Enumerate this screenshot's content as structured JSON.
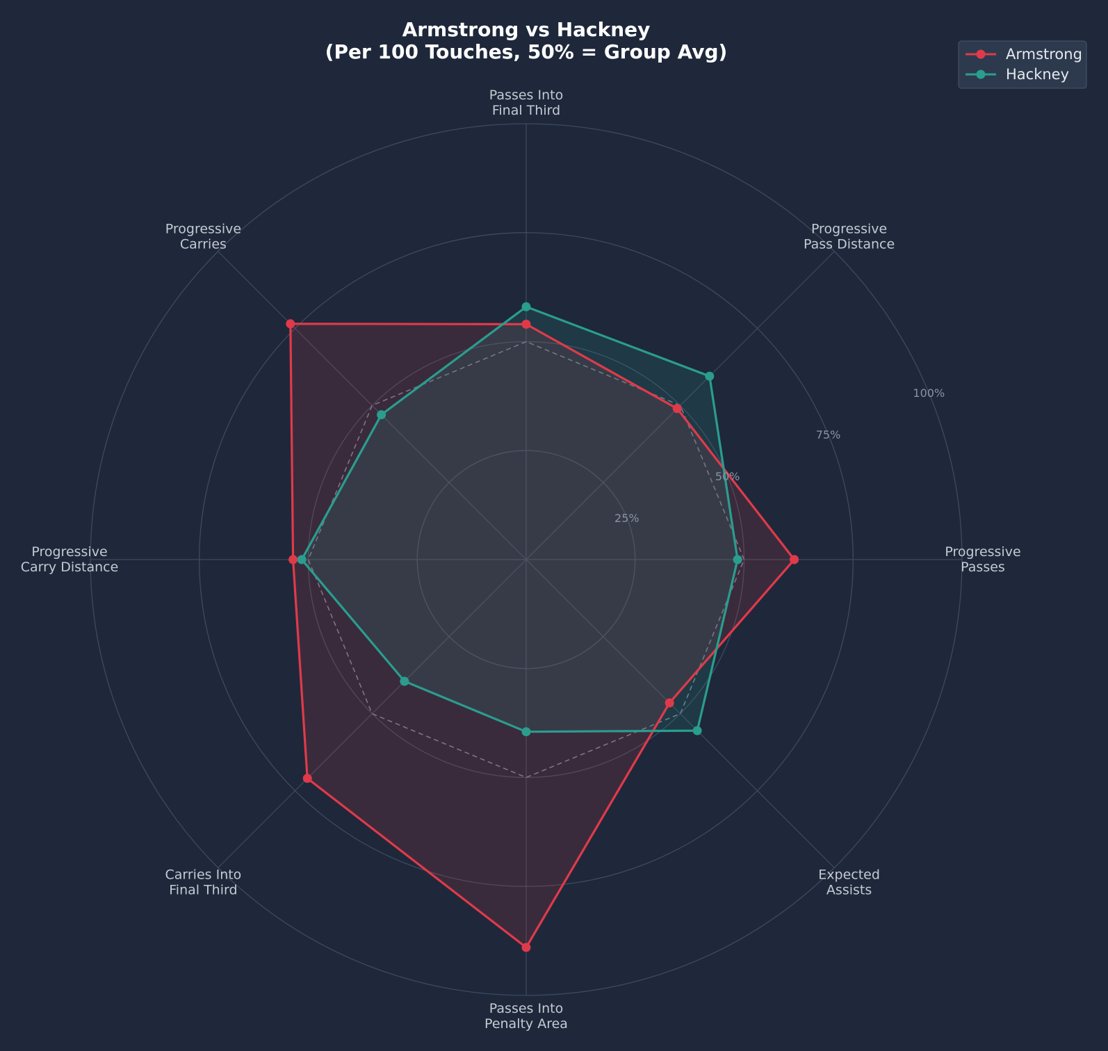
{
  "chart_data": {
    "type": "radar",
    "title_lines": [
      "Armstrong vs Hackney",
      "(Per 100 Touches, 50% = Group Avg)"
    ],
    "axes": [
      [
        "Progressive",
        "Passes"
      ],
      [
        "Progressive",
        "Pass Distance"
      ],
      [
        "Passes Into",
        "Final Third"
      ],
      [
        "Progressive",
        "Carries"
      ],
      [
        "Progressive",
        "Carry Distance"
      ],
      [
        "Carries Into",
        "Final Third"
      ],
      [
        "Passes Into",
        "Penalty Area"
      ],
      [
        "Expected",
        "Assists"
      ]
    ],
    "rlim": [
      0,
      100
    ],
    "ticks": [
      25,
      50,
      75,
      100
    ],
    "tick_labels": [
      "25%",
      "50%",
      "75%",
      "100%"
    ],
    "reference": {
      "values": [
        50,
        50,
        50,
        50,
        50,
        50,
        50,
        50
      ]
    },
    "series": [
      {
        "name": "Armstrong",
        "color": "#e03a4a",
        "values": [
          61.5,
          49.0,
          54.0,
          76.5,
          53.5,
          71.0,
          89.0,
          46.5
        ]
      },
      {
        "name": "Hackney",
        "color": "#2a9d8f",
        "values": [
          48.5,
          59.5,
          58.0,
          47.0,
          51.5,
          39.5,
          39.5,
          55.5
        ]
      }
    ],
    "grid": true,
    "legend": "top-right"
  }
}
